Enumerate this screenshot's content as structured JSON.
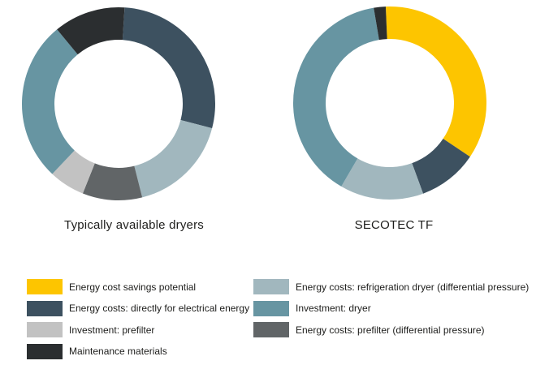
{
  "chart_data": [
    {
      "type": "donut",
      "title": "Typically available dryers",
      "unit": "share of total cost (%)",
      "inner_radius_ratio": 0.66,
      "start_rotation_deg": 4,
      "legend_position": "bottom",
      "segments": [
        {
          "label": "Energy costs: directly for electrical energy",
          "value": 28,
          "color": "#3D5160"
        },
        {
          "label": "Energy costs: refrigeration dryer (differential pressure)",
          "value": 17,
          "color": "#A1B7BE"
        },
        {
          "label": "Energy costs: prefilter (differential pressure)",
          "value": 10,
          "color": "#616567"
        },
        {
          "label": "Investment: prefilter",
          "value": 6,
          "color": "#C2C2C2"
        },
        {
          "label": "Investment: dryer",
          "value": 27,
          "color": "#6795A2"
        },
        {
          "label": "Maintenance materials",
          "value": 12,
          "color": "#2B2E30"
        }
      ]
    },
    {
      "type": "donut",
      "title": "SECOTEC TF",
      "unit": "share of total cost (%)",
      "inner_radius_ratio": 0.66,
      "start_rotation_deg": -2,
      "legend_position": "bottom",
      "segments": [
        {
          "label": "Energy cost savings potential",
          "value": 35,
          "color": "#FDC500"
        },
        {
          "label": "Energy costs: directly for electrical energy",
          "value": 10,
          "color": "#3D5160"
        },
        {
          "label": "Energy costs: refrigeration dryer (differential pressure)",
          "value": 14,
          "color": "#A1B7BE"
        },
        {
          "label": "Investment: dryer",
          "value": 39,
          "color": "#6795A2"
        },
        {
          "label": "Maintenance materials",
          "value": 2,
          "color": "#2B2E30"
        }
      ]
    }
  ],
  "legend": {
    "columns": [
      {
        "items": [
          {
            "label": "Energy cost savings potential",
            "color": "#FDC500"
          },
          {
            "label": "Energy costs: directly for electrical energy",
            "color": "#3D5160"
          },
          {
            "label": "Investment: prefilter",
            "color": "#C2C2C2"
          },
          {
            "label": "Maintenance materials",
            "color": "#2B2E30"
          }
        ]
      },
      {
        "items": [
          {
            "label": "Energy costs: refrigeration dryer (differential pressure)",
            "color": "#A1B7BE"
          },
          {
            "label": "Investment: dryer",
            "color": "#6795A2"
          },
          {
            "label": "Energy costs: prefilter (differential pressure)",
            "color": "#616567"
          }
        ]
      }
    ]
  }
}
